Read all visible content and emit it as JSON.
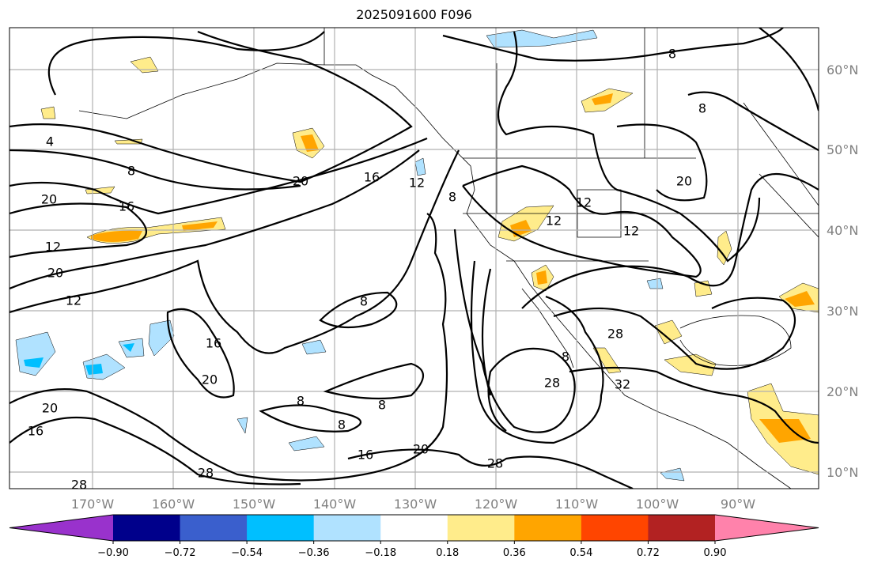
{
  "title": "2025091600 F096",
  "lon_labels": [
    "170°W",
    "160°W",
    "150°W",
    "140°W",
    "130°W",
    "120°W",
    "110°W",
    "100°W",
    "90°W"
  ],
  "lat_labels": [
    "60°N",
    "50°N",
    "40°N",
    "30°N",
    "20°N",
    "10°N"
  ],
  "colorbar": {
    "colors": [
      "#9932cc",
      "#00008b",
      "#3a5fcd",
      "#00bfff",
      "#b0e2ff",
      "#ffffff",
      "#ffec8b",
      "#ffa500",
      "#ff4500",
      "#b22222",
      "#ff82ab"
    ],
    "ticks": [
      "−0.90",
      "−0.72",
      "−0.54",
      "−0.36",
      "−0.18",
      "0.18",
      "0.36",
      "0.54",
      "0.72",
      "0.90"
    ]
  },
  "contour_labels": [
    "4",
    "8",
    "20",
    "16",
    "12",
    "20",
    "12",
    "20",
    "16",
    "12",
    "8",
    "8",
    "8",
    "20",
    "12",
    "12",
    "12",
    "8",
    "16",
    "20",
    "20",
    "16",
    "8",
    "8",
    "8",
    "16",
    "20",
    "28",
    "28",
    "28",
    "28",
    "28",
    "32",
    "8"
  ]
}
